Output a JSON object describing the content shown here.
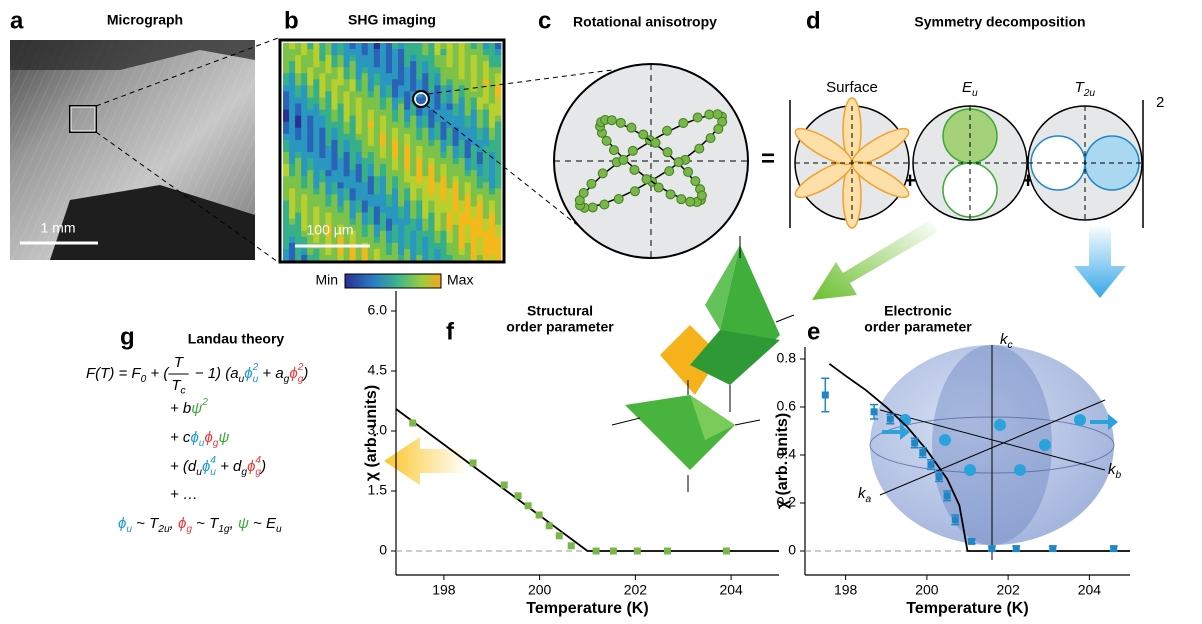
{
  "panels": {
    "a": {
      "letter": "a",
      "title": "Micrograph",
      "scale_bar": "1 mm"
    },
    "b": {
      "letter": "b",
      "title": "SHG imaging",
      "scale_bar": "100 µm",
      "colorbar_min": "Min",
      "colorbar_max": "Max"
    },
    "c": {
      "letter": "c",
      "title": "Rotational anisotropy"
    },
    "d": {
      "letter": "d",
      "title": "Symmetry decomposition",
      "equals": "=",
      "plus": "+",
      "power": "2",
      "terms": [
        [
          {
            "text": "Surface"
          }
        ],
        [
          {
            "text": "E",
            "sub": "u"
          }
        ],
        [
          {
            "text": "T",
            "sub": "2u"
          }
        ]
      ]
    },
    "e": {
      "letter": "e",
      "axes": [
        [
          {
            "text": "k",
            "sub": "c"
          }
        ],
        [
          {
            "text": "k",
            "sub": "a"
          }
        ],
        [
          {
            "text": "k",
            "sub": "b"
          }
        ]
      ]
    },
    "f": {
      "letter": "f"
    },
    "g": {
      "letter": "g",
      "title": "Landau theory",
      "equation": [
        [
          {
            "text": "F(T) = F",
            "sub": "0"
          },
          {
            "text": " + ("
          },
          {
            "num": "T",
            "den": "T",
            "den_sub": "c"
          },
          {
            "text": " − 1) (a",
            "sub": "u"
          },
          {
            "text": "ϕ",
            "sub": "u",
            "sup": "2",
            "color": "#1a9ad6"
          },
          {
            "text": " + a",
            "sub": "g"
          },
          {
            "text": "ϕ",
            "sub": "g",
            "sup": "2",
            "color": "#e8393f"
          },
          {
            "text": ")"
          }
        ],
        [
          {
            "text": "+ b"
          },
          {
            "text": "ψ",
            "sup": "2",
            "color": "#3aa935"
          }
        ],
        [
          {
            "text": "+ c"
          },
          {
            "text": "ϕ",
            "sub": "u",
            "color": "#1a9ad6"
          },
          {
            "text": "ϕ",
            "sub": "g",
            "color": "#e8393f"
          },
          {
            "text": "ψ",
            "color": "#3aa935"
          }
        ],
        [
          {
            "text": "+ (d",
            "sub": "u"
          },
          {
            "text": "ϕ",
            "sub": "u",
            "sup": "4",
            "color": "#1a9ad6"
          },
          {
            "text": " + d",
            "sub": "g"
          },
          {
            "text": "ϕ",
            "sub": "g",
            "sup": "4",
            "color": "#e8393f"
          },
          {
            "text": ")"
          }
        ],
        [
          {
            "text": "+ …"
          }
        ],
        [
          {
            "text": "ϕ",
            "sub": "u",
            "color": "#1a9ad6"
          },
          {
            "text": " ~ T",
            "sub": "2u"
          },
          {
            "text": ", "
          },
          {
            "text": "ϕ",
            "sub": "g",
            "color": "#e8393f"
          },
          {
            "text": " ~ T",
            "sub": "1g"
          },
          {
            "text": ", "
          },
          {
            "text": "ψ",
            "color": "#3aa935"
          },
          {
            "text": " ~ E",
            "sub": "u"
          }
        ]
      ]
    }
  },
  "chart_data": [
    {
      "type": "scatter",
      "title": [
        "Structural",
        "order parameter"
      ],
      "x_label": "Temperature (K)",
      "y_label": "χ (arb. units)",
      "xlim": [
        197,
        205
      ],
      "xticks": [
        198,
        200,
        202,
        204
      ],
      "ylim": [
        -0.6,
        6.5
      ],
      "yticks": [
        0,
        1.5,
        {
          "value": 3,
          "label": "3.0"
        },
        4.5,
        {
          "value": 6,
          "label": "6.0"
        }
      ],
      "zero_line": true,
      "series": [
        {
          "marker": "square",
          "color": "#7ab648",
          "x": [
            197.35,
            198.61,
            199.26,
            199.55,
            199.76,
            199.99,
            200.2,
            200.41,
            200.66,
            201.18,
            201.54,
            202.04,
            202.67,
            203.9
          ],
          "values": [
            3.2,
            2.2,
            1.65,
            1.38,
            1.13,
            0.9,
            0.63,
            0.38,
            0.13,
            0,
            0,
            0,
            0,
            0
          ]
        },
        {
          "marker": "line",
          "color": "#000000",
          "x": [
            197,
            201,
            205
          ],
          "values": [
            3.55,
            0,
            0
          ]
        }
      ]
    },
    {
      "type": "scatter",
      "title": [
        "Electronic",
        "order parameter"
      ],
      "x_label": "Temperature (K)",
      "y_label": "χ (arb. units)",
      "xlim": [
        197,
        205
      ],
      "xticks": [
        198,
        200,
        202,
        204
      ],
      "ylim": [
        -0.1,
        0.85
      ],
      "yticks": [
        0,
        0.2,
        0.4,
        0.6,
        0.8
      ],
      "zero_line": true,
      "series": [
        {
          "marker": "square",
          "color": "#1f87c6",
          "x": [
            197.5,
            198.7,
            199.1,
            199.7,
            199.9,
            200.1,
            200.3,
            200.5,
            200.7,
            201.1,
            201.6,
            202.2,
            203.1,
            204.6
          ],
          "values": [
            0.65,
            0.58,
            0.55,
            0.45,
            0.41,
            0.36,
            0.31,
            0.23,
            0.13,
            0.04,
            0.01,
            0.01,
            0.01,
            0.01
          ],
          "errors": [
            0.07,
            0.03,
            0.02,
            0.02,
            0.02,
            0.02,
            0.02,
            0.02,
            0.02,
            0.01,
            0.01,
            0.01,
            0.01,
            0.01
          ]
        },
        {
          "marker": "line",
          "color": "#000000",
          "x": [
            197.6,
            198,
            198.5,
            199,
            199.5,
            200,
            200.5,
            200.8,
            201,
            205
          ],
          "values": [
            0.78,
            0.73,
            0.67,
            0.6,
            0.52,
            0.42,
            0.3,
            0.19,
            0,
            0
          ]
        }
      ]
    }
  ]
}
